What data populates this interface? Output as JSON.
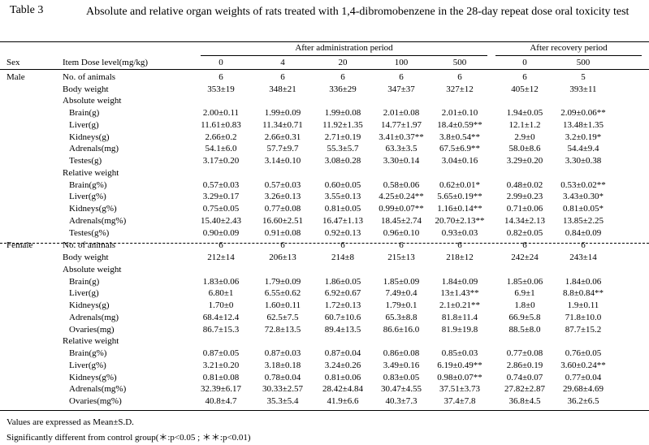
{
  "table_number": "Table 3",
  "title": "Absolute and relative organ weights of rats treated with 1,4-dibromobenzene in the 28-day repeat dose oral toxicity test",
  "header": {
    "group_admin": "After administration period",
    "group_recovery": "After recovery period",
    "sex_label": "Sex",
    "item_label": "Item Dose level(mg/kg)",
    "doses": [
      "0",
      "4",
      "20",
      "100",
      "500",
      "0",
      "500"
    ]
  },
  "rows": [
    {
      "sex": "Male",
      "item": "No. of animals",
      "indent": 0,
      "values": [
        "6",
        "6",
        "6",
        "6",
        "6",
        "6",
        "5"
      ]
    },
    {
      "sex": "",
      "item": "Body weight",
      "indent": 0,
      "values": [
        "353±19",
        "348±21",
        "336±29",
        "347±37",
        "327±12",
        "405±12",
        "393±11"
      ]
    },
    {
      "sex": "",
      "item": "Absolute weight",
      "indent": 0,
      "values": []
    },
    {
      "sex": "",
      "item": "Brain(g)",
      "indent": 1,
      "values": [
        "2.00±0.11",
        "1.99±0.09",
        "1.99±0.08",
        "2.01±0.08",
        "2.01±0.10",
        "1.94±0.05",
        "2.09±0.06**"
      ]
    },
    {
      "sex": "",
      "item": "Liver(g)",
      "indent": 1,
      "values": [
        "11.61±0.83",
        "11.34±0.71",
        "11.92±1.35",
        "14.77±1.97",
        "18.4±0.59**",
        "12.1±1.2",
        "13.48±1.35"
      ]
    },
    {
      "sex": "",
      "item": "Kidneys(g)",
      "indent": 1,
      "values": [
        "2.66±0.2",
        "2.66±0.31",
        "2.71±0.19",
        "3.41±0.37**",
        "3.8±0.54**",
        "2.9±0",
        "3.2±0.19*"
      ]
    },
    {
      "sex": "",
      "item": "Adrenals(mg)",
      "indent": 1,
      "values": [
        "54.1±6.0",
        "57.7±9.7",
        "55.3±5.7",
        "63.3±3.5",
        "67.5±6.9**",
        "58.0±8.6",
        "54.4±9.4"
      ]
    },
    {
      "sex": "",
      "item": "Testes(g)",
      "indent": 1,
      "values": [
        "3.17±0.20",
        "3.14±0.10",
        "3.08±0.28",
        "3.30±0.14",
        "3.04±0.16",
        "3.29±0.20",
        "3.30±0.38"
      ]
    },
    {
      "sex": "",
      "item": "Relative weight",
      "indent": 0,
      "values": []
    },
    {
      "sex": "",
      "item": "Brain(g%)",
      "indent": 1,
      "values": [
        "0.57±0.03",
        "0.57±0.03",
        "0.60±0.05",
        "0.58±0.06",
        "0.62±0.01*",
        "0.48±0.02",
        "0.53±0.02**"
      ]
    },
    {
      "sex": "",
      "item": "Liver(g%)",
      "indent": 1,
      "values": [
        "3.29±0.17",
        "3.26±0.13",
        "3.55±0.13",
        "4.25±0.24**",
        "5.65±0.19**",
        "2.99±0.23",
        "3.43±0.30*"
      ]
    },
    {
      "sex": "",
      "item": "Kidneys(g%)",
      "indent": 1,
      "values": [
        "0.75±0.05",
        "0.77±0.08",
        "0.81±0.05",
        "0.99±0.07**",
        "1.16±0.14**",
        "0.71±0.06",
        "0.81±0.05*"
      ]
    },
    {
      "sex": "",
      "item": "Adrenals(mg%)",
      "indent": 1,
      "values": [
        "15.40±2.43",
        "16.60±2.51",
        "16.47±1.13",
        "18.45±2.74",
        "20.70±2.13**",
        "14.34±2.13",
        "13.85±2.25"
      ]
    },
    {
      "sex": "",
      "item": "Testes(g%)",
      "indent": 1,
      "values": [
        "0.90±0.09",
        "0.91±0.08",
        "0.92±0.13",
        "0.96±0.10",
        "0.93±0.03",
        "0.82±0.05",
        "0.84±0.09"
      ]
    },
    {
      "sex": "Female",
      "item": "No. of animals",
      "indent": 0,
      "values": [
        "6",
        "6",
        "6",
        "6",
        "6",
        "6",
        "6"
      ]
    },
    {
      "sex": "",
      "item": "Body weight",
      "indent": 0,
      "values": [
        "212±14",
        "206±13",
        "214±8",
        "215±13",
        "218±12",
        "242±24",
        "243±14"
      ]
    },
    {
      "sex": "",
      "item": "Absolute weight",
      "indent": 0,
      "values": []
    },
    {
      "sex": "",
      "item": "Brain(g)",
      "indent": 1,
      "values": [
        "1.83±0.06",
        "1.79±0.09",
        "1.86±0.05",
        "1.85±0.09",
        "1.84±0.09",
        "1.85±0.06",
        "1.84±0.06"
      ]
    },
    {
      "sex": "",
      "item": "Liver(g)",
      "indent": 1,
      "values": [
        "6.80±1",
        "6.55±0.62",
        "6.92±0.67",
        "7.49±0.4",
        "13±1.43**",
        "6.9±1",
        "8.8±0.84**"
      ]
    },
    {
      "sex": "",
      "item": "Kidneys(g)",
      "indent": 1,
      "values": [
        "1.70±0",
        "1.60±0.11",
        "1.72±0.13",
        "1.79±0.1",
        "2.1±0.21**",
        "1.8±0",
        "1.9±0.11"
      ]
    },
    {
      "sex": "",
      "item": "Adrenals(mg)",
      "indent": 1,
      "values": [
        "68.4±12.4",
        "62.5±7.5",
        "60.7±10.6",
        "65.3±8.8",
        "81.8±11.4",
        "66.9±5.8",
        "71.8±10.0"
      ]
    },
    {
      "sex": "",
      "item": "Ovaries(mg)",
      "indent": 1,
      "values": [
        "86.7±15.3",
        "72.8±13.5",
        "89.4±13.5",
        "86.6±16.0",
        "81.9±19.8",
        "88.5±8.0",
        "87.7±15.2"
      ]
    },
    {
      "sex": "",
      "item": "Relative weight",
      "indent": 0,
      "values": []
    },
    {
      "sex": "",
      "item": "Brain(g%)",
      "indent": 1,
      "values": [
        "0.87±0.05",
        "0.87±0.03",
        "0.87±0.04",
        "0.86±0.08",
        "0.85±0.03",
        "0.77±0.08",
        "0.76±0.05"
      ]
    },
    {
      "sex": "",
      "item": "Liver(g%)",
      "indent": 1,
      "values": [
        "3.21±0.20",
        "3.18±0.18",
        "3.24±0.26",
        "3.49±0.16",
        "6.19±0.49**",
        "2.86±0.19",
        "3.60±0.24**"
      ]
    },
    {
      "sex": "",
      "item": "Kidneys(g%)",
      "indent": 1,
      "values": [
        "0.81±0.08",
        "0.78±0.04",
        "0.81±0.06",
        "0.83±0.05",
        "0.98±0.07**",
        "0.74±0.07",
        "0.77±0.04"
      ]
    },
    {
      "sex": "",
      "item": "Adrenals(mg%)",
      "indent": 1,
      "values": [
        "32.39±6.17",
        "30.33±2.57",
        "28.42±4.84",
        "30.47±4.55",
        "37.51±3.73",
        "27.82±2.87",
        "29.68±4.69"
      ]
    },
    {
      "sex": "",
      "item": "Ovaries(mg%)",
      "indent": 1,
      "values": [
        "40.8±4.7",
        "35.3±5.4",
        "41.9±6.6",
        "40.3±7.3",
        "37.4±7.8",
        "36.8±4.5",
        "36.2±6.5"
      ]
    }
  ],
  "footnotes": [
    "Values are expressed as Mean±S.D.",
    "Significantly different from control group(＊:p<0.05 ; ＊＊:p<0.01)"
  ]
}
